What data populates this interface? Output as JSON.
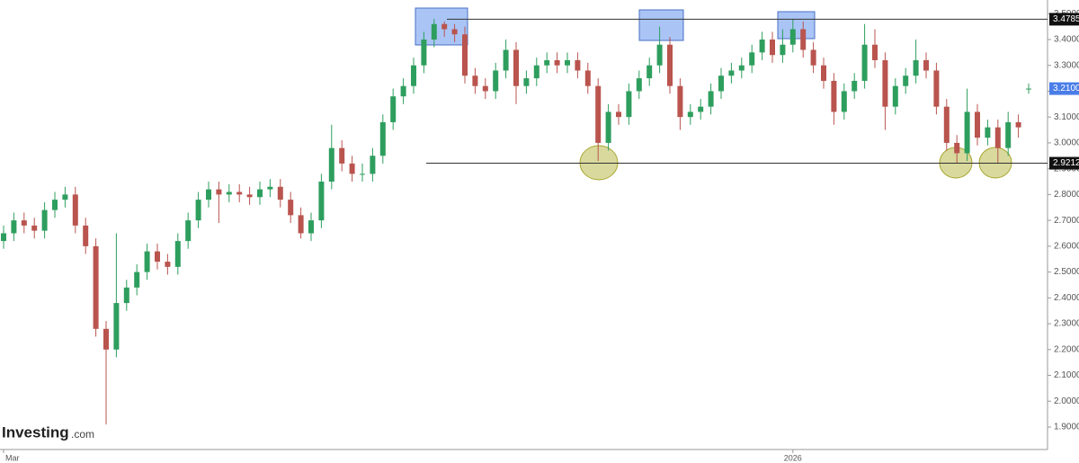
{
  "chart_data": {
    "type": "candlestick",
    "watermark": "Investing",
    "watermark_suffix": ".com",
    "categories": [
      "Mar",
      null,
      null,
      null,
      null,
      null,
      null,
      null,
      null,
      null,
      null,
      null,
      null,
      null,
      null,
      null,
      null,
      null,
      null,
      null,
      null,
      null,
      null,
      null,
      null,
      null,
      null,
      null,
      null,
      null,
      null,
      null,
      null,
      null,
      null,
      null,
      null,
      null,
      null,
      null,
      null,
      null,
      null,
      null,
      null,
      null,
      null,
      null,
      null,
      null,
      null,
      null,
      null,
      null,
      null,
      null,
      null,
      null,
      null,
      null,
      null,
      null,
      null,
      null,
      null,
      null,
      null,
      null,
      null,
      null,
      null,
      null,
      null,
      null,
      null,
      null,
      null,
      "2026",
      null,
      null,
      null,
      null,
      null,
      null,
      null,
      null,
      null,
      null,
      null,
      null,
      null,
      null,
      null,
      null,
      null,
      null,
      null,
      null,
      null,
      null,
      null
    ],
    "open": [
      2.62,
      2.65,
      2.7,
      2.68,
      2.66,
      2.74,
      2.78,
      2.8,
      2.68,
      2.6,
      2.28,
      2.2,
      2.38,
      2.44,
      2.5,
      2.58,
      2.54,
      2.52,
      2.62,
      2.7,
      2.78,
      2.82,
      2.8,
      2.81,
      2.8,
      2.79,
      2.82,
      2.83,
      2.78,
      2.72,
      2.65,
      2.7,
      2.85,
      2.98,
      2.92,
      2.88,
      2.88,
      2.95,
      3.08,
      3.18,
      3.22,
      3.3,
      3.4,
      3.46,
      3.44,
      3.42,
      3.26,
      3.22,
      3.2,
      3.28,
      3.36,
      3.22,
      3.25,
      3.3,
      3.32,
      3.3,
      3.32,
      3.28,
      3.22,
      3.0,
      3.12,
      3.1,
      3.2,
      3.25,
      3.3,
      3.38,
      3.22,
      3.1,
      3.12,
      3.14,
      3.2,
      3.26,
      3.28,
      3.3,
      3.35,
      3.4,
      3.34,
      3.38,
      3.44,
      3.36,
      3.3,
      3.24,
      3.12,
      3.2,
      3.24,
      3.38,
      3.32,
      3.14,
      3.22,
      3.26,
      3.32,
      3.28,
      3.14,
      3.0,
      2.96,
      3.12,
      3.02,
      3.06,
      2.98,
      3.08,
      3.21
    ],
    "high": [
      2.68,
      2.73,
      2.73,
      2.71,
      2.77,
      2.81,
      2.83,
      2.83,
      2.71,
      2.63,
      2.31,
      2.65,
      2.47,
      2.53,
      2.61,
      2.61,
      2.57,
      2.65,
      2.73,
      2.81,
      2.85,
      2.85,
      2.84,
      2.84,
      2.83,
      2.85,
      2.86,
      2.86,
      2.81,
      2.75,
      2.73,
      2.88,
      3.07,
      3.01,
      2.95,
      2.92,
      2.98,
      3.11,
      3.21,
      3.25,
      3.33,
      3.43,
      3.48,
      3.47,
      3.46,
      3.45,
      3.29,
      3.25,
      3.31,
      3.4,
      3.39,
      3.28,
      3.33,
      3.35,
      3.35,
      3.35,
      3.35,
      3.31,
      3.25,
      3.15,
      3.15,
      3.23,
      3.28,
      3.33,
      3.45,
      3.41,
      3.25,
      3.15,
      3.17,
      3.23,
      3.29,
      3.31,
      3.33,
      3.38,
      3.43,
      3.43,
      3.44,
      3.48,
      3.47,
      3.39,
      3.33,
      3.27,
      3.23,
      3.27,
      3.46,
      3.44,
      3.35,
      3.25,
      3.29,
      3.4,
      3.35,
      3.31,
      3.17,
      3.03,
      3.21,
      3.15,
      3.09,
      3.09,
      3.12,
      3.11,
      3.23
    ],
    "low": [
      2.59,
      2.62,
      2.65,
      2.63,
      2.63,
      2.71,
      2.75,
      2.65,
      2.57,
      2.25,
      1.91,
      2.17,
      2.35,
      2.41,
      2.47,
      2.51,
      2.49,
      2.49,
      2.59,
      2.67,
      2.75,
      2.69,
      2.77,
      2.77,
      2.76,
      2.76,
      2.79,
      2.75,
      2.69,
      2.63,
      2.62,
      2.67,
      2.82,
      2.89,
      2.85,
      2.85,
      2.85,
      2.92,
      3.05,
      3.15,
      3.19,
      3.27,
      3.37,
      3.41,
      3.39,
      3.23,
      3.19,
      3.17,
      3.17,
      3.25,
      3.15,
      3.19,
      3.22,
      3.27,
      3.27,
      3.27,
      3.25,
      3.19,
      2.93,
      2.97,
      3.07,
      3.07,
      3.17,
      3.22,
      3.27,
      3.19,
      3.05,
      3.07,
      3.09,
      3.11,
      3.17,
      3.23,
      3.25,
      3.27,
      3.32,
      3.31,
      3.31,
      3.35,
      3.33,
      3.27,
      3.21,
      3.07,
      3.09,
      3.17,
      3.21,
      3.29,
      3.05,
      3.11,
      3.19,
      3.23,
      3.25,
      3.11,
      2.97,
      2.92,
      2.93,
      2.99,
      2.99,
      2.92,
      2.95,
      3.02,
      3.19
    ],
    "close": [
      2.65,
      2.7,
      2.68,
      2.66,
      2.74,
      2.78,
      2.8,
      2.68,
      2.6,
      2.28,
      2.2,
      2.38,
      2.44,
      2.5,
      2.58,
      2.54,
      2.52,
      2.62,
      2.7,
      2.78,
      2.82,
      2.8,
      2.81,
      2.8,
      2.79,
      2.82,
      2.83,
      2.78,
      2.72,
      2.65,
      2.7,
      2.85,
      2.98,
      2.92,
      2.88,
      2.88,
      2.95,
      3.08,
      3.18,
      3.22,
      3.3,
      3.4,
      3.46,
      3.44,
      3.42,
      3.26,
      3.22,
      3.2,
      3.28,
      3.36,
      3.22,
      3.25,
      3.3,
      3.32,
      3.3,
      3.32,
      3.28,
      3.22,
      3.0,
      3.12,
      3.1,
      3.2,
      3.25,
      3.3,
      3.38,
      3.22,
      3.1,
      3.12,
      3.14,
      3.2,
      3.26,
      3.28,
      3.3,
      3.35,
      3.4,
      3.34,
      3.38,
      3.44,
      3.36,
      3.3,
      3.24,
      3.12,
      3.2,
      3.24,
      3.38,
      3.32,
      3.14,
      3.22,
      3.26,
      3.32,
      3.28,
      3.14,
      3.0,
      2.96,
      3.12,
      3.02,
      3.06,
      2.98,
      3.08,
      3.06,
      3.21
    ],
    "up_color": "#2e9e5e",
    "down_color": "#b9544e",
    "ylim": [
      1.813,
      3.553
    ],
    "yticks": [
      {
        "value": 1.9,
        "label": "1.9000"
      },
      {
        "value": 2.0,
        "label": "2.0000"
      },
      {
        "value": 2.1,
        "label": "2.1000"
      },
      {
        "value": 2.2,
        "label": "2.2000"
      },
      {
        "value": 2.3,
        "label": "2.3000"
      },
      {
        "value": 2.4,
        "label": "2.4000"
      },
      {
        "value": 2.5,
        "label": "2.5000"
      },
      {
        "value": 2.6,
        "label": "2.6000"
      },
      {
        "value": 2.7,
        "label": "2.7000"
      },
      {
        "value": 2.8,
        "label": "2.8000"
      },
      {
        "value": 2.9,
        "label": "2.9000"
      },
      {
        "value": 3.0,
        "label": "3.0000"
      },
      {
        "value": 3.1,
        "label": "3.1000"
      },
      {
        "value": 3.2,
        "label": "3.2000"
      },
      {
        "value": 3.3,
        "label": "3.3000"
      },
      {
        "value": 3.4,
        "label": "3.4000"
      },
      {
        "value": 3.5,
        "label": "3.5000"
      }
    ],
    "levels": [
      {
        "value": 3.4785,
        "label": "3.4785"
      },
      {
        "value": 2.9212,
        "label": "2.9212"
      }
    ],
    "last_price": {
      "value": 3.21,
      "label": "3.2100"
    },
    "grid": false
  }
}
